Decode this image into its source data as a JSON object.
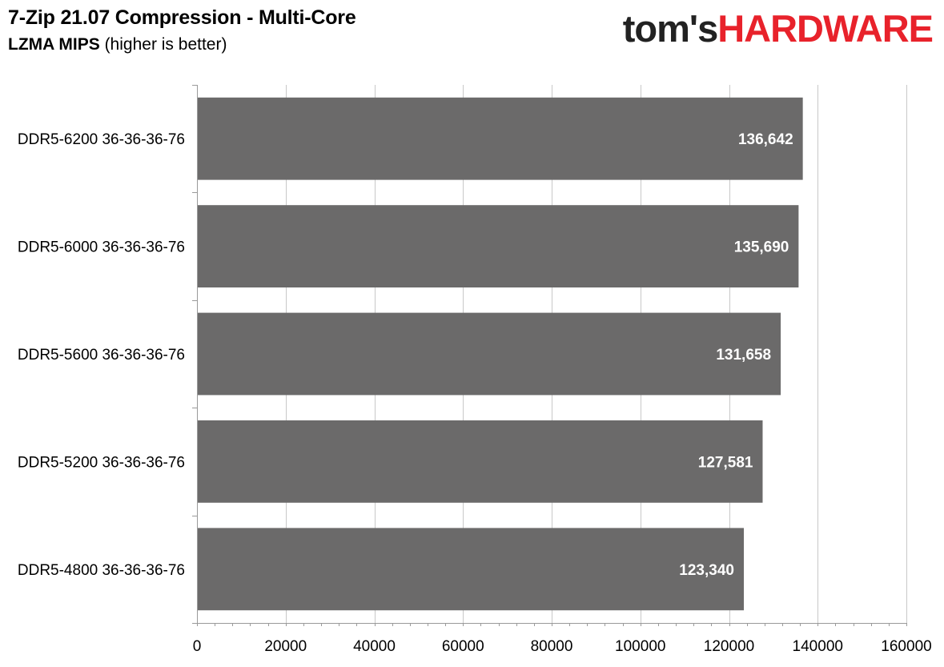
{
  "header": {
    "title": "7-Zip 21.07 Compression - Multi-Core",
    "subtitle_metric": "LZMA MIPS",
    "subtitle_note": "(higher is better)"
  },
  "logo": {
    "part1": "tom's",
    "part2": "HARDWARE",
    "color1": "#222222",
    "color2": "#e8222b"
  },
  "chart_data": {
    "type": "bar",
    "orientation": "horizontal",
    "title": "7-Zip 21.07 Compression - Multi-Core",
    "subtitle": "LZMA MIPS (higher is better)",
    "categories": [
      "DDR5-6200 36-36-36-76",
      "DDR5-6000 36-36-36-76",
      "DDR5-5600 36-36-36-76",
      "DDR5-5200 36-36-36-76",
      "DDR5-4800 36-36-36-76"
    ],
    "values": [
      136642,
      135690,
      131658,
      127581,
      123340
    ],
    "value_labels": [
      "136,642",
      "135,690",
      "131,658",
      "127,581",
      "123,340"
    ],
    "xlim": [
      0,
      160000
    ],
    "xticks": [
      0,
      20000,
      40000,
      60000,
      80000,
      100000,
      120000,
      140000,
      160000
    ],
    "xtick_labels": [
      "0",
      "20000",
      "40000",
      "60000",
      "80000",
      "100000",
      "120000",
      "140000",
      "160000"
    ],
    "xlabel": "",
    "ylabel": "",
    "grid": "vertical",
    "legend": "none",
    "bar_color": "#6b6a6a",
    "label_color": "#ffffff",
    "grid_color": "#c8c8c8"
  }
}
